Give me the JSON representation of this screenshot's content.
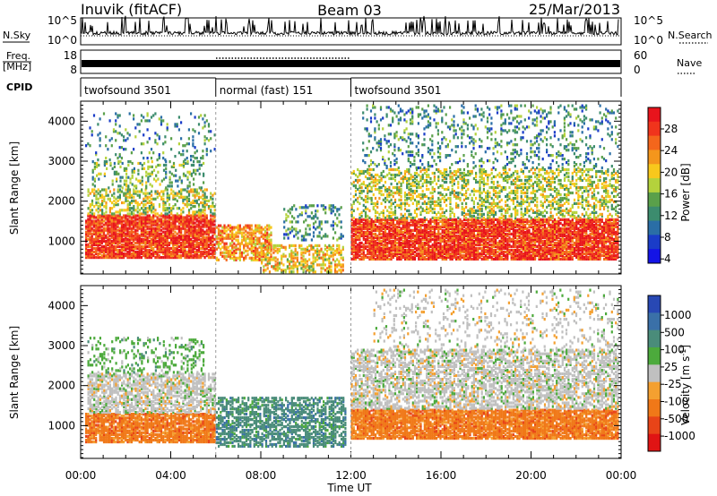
{
  "header": {
    "station": "Inuvik (fitACF)",
    "beam": "Beam 03",
    "date": "25/Mar/2013"
  },
  "side_labels": {
    "nsky": "N.Sky",
    "nsearch": "N.Search",
    "freq": "Freq.",
    "freq_unit": "[MHz]",
    "nave": "Nave",
    "cpid": "CPID"
  },
  "top_panels": {
    "nsky_left_ticks": [
      "10^5",
      "10^0"
    ],
    "nsky_right_ticks": [
      "10^5",
      "10^0"
    ],
    "freq_ticks": [
      "18",
      "8"
    ],
    "nave_ticks": [
      "60",
      "0"
    ]
  },
  "cpid_segments": [
    {
      "label": "twofsound 3501",
      "start_hr": 0,
      "end_hr": 6
    },
    {
      "label": "normal (fast) 151",
      "start_hr": 6,
      "end_hr": 12
    },
    {
      "label": "twofsound 3501",
      "start_hr": 12,
      "end_hr": 24
    }
  ],
  "power_colorbar": {
    "title": "Power [dB]",
    "ticks": [
      "28",
      "24",
      "20",
      "16",
      "12",
      "8",
      "4"
    ],
    "colors": [
      "#e8141c",
      "#f0341c",
      "#f4661c",
      "#f4961c",
      "#f8c81c",
      "#b4d23c",
      "#5aa04a",
      "#3c8c6e",
      "#2a6ea6",
      "#1a3cc8",
      "#1414e6"
    ]
  },
  "velocity_colorbar": {
    "title": "Velocity [m s",
    "title_sup": "-1",
    "title_end": "]",
    "ticks": [
      "1000",
      "500",
      "100",
      "25",
      "-25",
      "-100",
      "-500",
      "-1000"
    ],
    "colors": [
      "#2848b4",
      "#3a70a8",
      "#4a8c7a",
      "#4caa3c",
      "#c0c0c0",
      "#f4a030",
      "#f07818",
      "#e84418",
      "#e01414"
    ]
  },
  "chart_data": [
    {
      "type": "heatmap",
      "name": "power",
      "ylabel": "Slant Range [km]",
      "y_ticks": [
        1000,
        2000,
        3000,
        4000
      ],
      "ylim": [
        180,
        4500
      ],
      "xlim": [
        0,
        24
      ],
      "value_range": [
        0,
        30
      ],
      "regions": [
        {
          "t0": 0.2,
          "t1": 6.0,
          "r0": 560,
          "r1": 1650,
          "level": 26,
          "density": 0.85
        },
        {
          "t0": 0.3,
          "t1": 6.0,
          "r0": 1650,
          "r1": 2300,
          "level": 15,
          "density": 0.45
        },
        {
          "t0": 0.5,
          "t1": 5.5,
          "r0": 2300,
          "r1": 3000,
          "level": 12,
          "density": 0.22
        },
        {
          "t0": 0.2,
          "t1": 6.0,
          "r0": 3000,
          "r1": 4200,
          "level": 10,
          "density": 0.1
        },
        {
          "t0": 6.0,
          "t1": 8.5,
          "r0": 500,
          "r1": 1400,
          "level": 22,
          "density": 0.6
        },
        {
          "t0": 8.0,
          "t1": 11.7,
          "r0": 200,
          "r1": 900,
          "level": 18,
          "density": 0.45
        },
        {
          "t0": 9.0,
          "t1": 11.7,
          "r0": 1000,
          "r1": 1900,
          "level": 9,
          "density": 0.25
        },
        {
          "t0": 12.0,
          "t1": 23.9,
          "r0": 520,
          "r1": 1550,
          "level": 26,
          "density": 0.85
        },
        {
          "t0": 12.0,
          "t1": 23.9,
          "r0": 1550,
          "r1": 2800,
          "level": 14,
          "density": 0.4
        },
        {
          "t0": 12.5,
          "t1": 23.9,
          "r0": 2800,
          "r1": 4400,
          "level": 9,
          "density": 0.16
        }
      ]
    },
    {
      "type": "heatmap",
      "name": "velocity",
      "ylabel": "Slant Range [km]",
      "xlabel": "Time UT",
      "x_ticks": [
        "00:00",
        "04:00",
        "08:00",
        "12:00",
        "16:00",
        "20:00",
        "00:00"
      ],
      "y_ticks": [
        1000,
        2000,
        3000,
        4000
      ],
      "ylim": [
        180,
        4500
      ],
      "xlim": [
        0,
        24
      ],
      "value_range": [
        -1000,
        1000
      ],
      "regions": [
        {
          "t0": 0.2,
          "t1": 6.0,
          "r0": 560,
          "r1": 1300,
          "class": 6,
          "density": 0.85
        },
        {
          "t0": 0.3,
          "t1": 6.0,
          "r0": 1300,
          "r1": 2300,
          "class": 4,
          "density": 0.6
        },
        {
          "t0": 0.3,
          "t1": 5.5,
          "r0": 2300,
          "r1": 3200,
          "class": 3,
          "density": 0.22
        },
        {
          "t0": 6.0,
          "t1": 11.8,
          "r0": 450,
          "r1": 1700,
          "class": 2,
          "density": 0.55
        },
        {
          "t0": 12.0,
          "t1": 23.9,
          "r0": 650,
          "r1": 1400,
          "class": 6,
          "density": 0.85
        },
        {
          "t0": 12.0,
          "t1": 23.9,
          "r0": 1400,
          "r1": 2900,
          "class": 4,
          "density": 0.55
        },
        {
          "t0": 13.0,
          "t1": 23.9,
          "r0": 2900,
          "r1": 4400,
          "class": 4,
          "density": 0.14
        }
      ]
    }
  ]
}
